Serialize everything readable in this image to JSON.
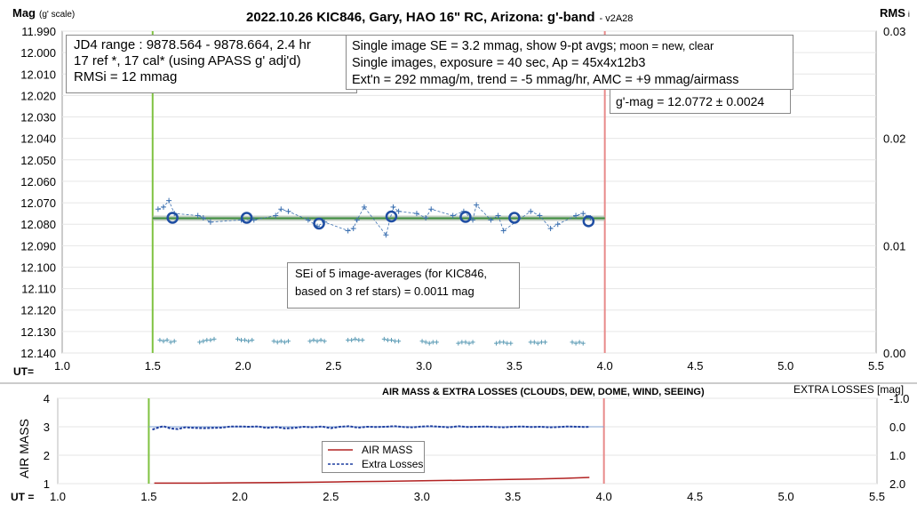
{
  "title": "2022.10.26 KIC846, Gary, HAO 16\" RC, Arizona: g'-band",
  "title_version": "- v2A28",
  "top_chart": {
    "ylabel": "Mag",
    "ylabel_unit": "(g' scale)",
    "y2label": "RMS",
    "y2label_sub": "i",
    "ut_label": "UT="
  },
  "info_boxes": {
    "jd_line1": "JD4 range : 9878.564 - 9878.664,  2.4 hr",
    "jd_line2": "17 ref *, 17 cal* (using APASS g' adj'd)",
    "jd_line3": "RMSi = 12 mmag",
    "se_line1a": "Single image SE = 3.2 mmag, show  9-pt avgs;",
    "se_line1b": " moon = new, clear",
    "se_line2": "Single images, exposure = 40 sec, Ap = 45x4x12b3",
    "se_line3": "Ext'n = 292 mmag/m, trend = -5 mmag/hr, AMC = +9 mmag/airmass",
    "gmag": "g'-mag = 12.0772 ± 0.0024",
    "sei_line1": "SEi of 5 image-averages (for KIC846,",
    "sei_line2": "based on 3 ref stars) = 0.0011 mag"
  },
  "bottom_chart": {
    "title": "AIR MASS & EXTRA LOSSES (CLOUDS, DEW, DOME, WIND, SEEING)",
    "ylabel": "AIR MASS",
    "y2label": "EXTRA LOSSES [mag]",
    "ut_label": "UT =",
    "legend_airmass": "AIR MASS",
    "legend_losses": "Extra Losses"
  },
  "colors": {
    "start_line": "#7fc241",
    "end_line": "#e88a8a",
    "trend_line": "#8fbf8f",
    "mag_points": "#3a6fb0",
    "avg_circles": "#1f4ea3",
    "rms_points": "#5b9bb5",
    "airmass": "#b22222",
    "losses": "#1f3fa0"
  },
  "chart_data": [
    {
      "type": "scatter",
      "title": "2022.10.26 KIC846, Gary, HAO 16\" RC, Arizona: g'-band",
      "ylabel": "Mag (g' scale)",
      "y2label": "RMS i",
      "xlabel": "UT=",
      "xlim": [
        1.0,
        5.5
      ],
      "xticks": [
        1.0,
        1.5,
        2.0,
        2.5,
        3.0,
        3.5,
        4.0,
        4.5,
        5.0,
        5.5
      ],
      "ylim": [
        12.14,
        11.99
      ],
      "yticks": [
        11.99,
        12.0,
        12.01,
        12.02,
        12.03,
        12.04,
        12.05,
        12.06,
        12.07,
        12.08,
        12.09,
        12.1,
        12.11,
        12.12,
        12.13,
        12.14
      ],
      "y2lim": [
        0.0,
        0.03
      ],
      "y2ticks": [
        0.0,
        0.01,
        0.02,
        0.03
      ],
      "vlines": [
        1.5,
        4.0
      ],
      "trend_line": {
        "x": [
          1.5,
          4.0
        ],
        "y": [
          12.0772,
          12.0772
        ]
      },
      "series": [
        {
          "kind": "single_images",
          "x": [
            1.53,
            1.56,
            1.59,
            1.62,
            1.75,
            1.78,
            1.82,
            1.99,
            2.06,
            2.18,
            2.21,
            2.25,
            2.36,
            2.41,
            2.45,
            2.58,
            2.61,
            2.63,
            2.67,
            2.79,
            2.83,
            2.86,
            2.96,
            3.01,
            3.04,
            3.16,
            3.22,
            3.27,
            3.29,
            3.37,
            3.41,
            3.44,
            3.59,
            3.64,
            3.7,
            3.74,
            3.84,
            3.88,
            3.92
          ],
          "y": [
            12.073,
            12.072,
            12.069,
            12.075,
            12.076,
            12.077,
            12.079,
            12.078,
            12.078,
            12.076,
            12.073,
            12.074,
            12.078,
            12.081,
            12.079,
            12.083,
            12.082,
            12.078,
            12.072,
            12.085,
            12.072,
            12.074,
            12.075,
            12.077,
            12.073,
            12.076,
            12.074,
            12.078,
            12.071,
            12.078,
            12.076,
            12.083,
            12.074,
            12.076,
            12.082,
            12.08,
            12.076,
            12.075,
            12.077
          ]
        },
        {
          "kind": "9pt_averages",
          "x": [
            1.61,
            2.02,
            2.42,
            2.82,
            3.23,
            3.5,
            3.91
          ],
          "y": [
            12.077,
            12.077,
            12.0797,
            12.0764,
            12.0766,
            12.077,
            12.0786
          ]
        },
        {
          "kind": "rms_i",
          "axis": "y2",
          "x": [
            1.54,
            1.56,
            1.58,
            1.6,
            1.62,
            1.76,
            1.78,
            1.8,
            1.82,
            1.84,
            1.97,
            1.99,
            2.01,
            2.03,
            2.05,
            2.17,
            2.19,
            2.21,
            2.23,
            2.25,
            2.37,
            2.39,
            2.41,
            2.43,
            2.45,
            2.58,
            2.6,
            2.62,
            2.64,
            2.66,
            2.78,
            2.8,
            2.82,
            2.84,
            2.86,
            2.99,
            3.01,
            3.03,
            3.05,
            3.07,
            3.19,
            3.21,
            3.23,
            3.25,
            3.27,
            3.4,
            3.42,
            3.44,
            3.46,
            3.48,
            3.59,
            3.61,
            3.63,
            3.65,
            3.67,
            3.82,
            3.84,
            3.86,
            3.88
          ],
          "y": [
            0.0012,
            0.0011,
            0.0012,
            0.001,
            0.0011,
            0.001,
            0.0011,
            0.0012,
            0.0012,
            0.0013,
            0.0013,
            0.0012,
            0.0012,
            0.0011,
            0.0012,
            0.0011,
            0.001,
            0.0011,
            0.001,
            0.0011,
            0.0011,
            0.0012,
            0.0011,
            0.0012,
            0.0011,
            0.0012,
            0.0012,
            0.0013,
            0.0012,
            0.0012,
            0.0013,
            0.0012,
            0.0012,
            0.0011,
            0.0011,
            0.0011,
            0.001,
            0.0009,
            0.001,
            0.001,
            0.0009,
            0.001,
            0.001,
            0.0009,
            0.001,
            0.0009,
            0.001,
            0.001,
            0.0009,
            0.0009,
            0.001,
            0.001,
            0.0009,
            0.001,
            0.001,
            0.001,
            0.0009,
            0.001,
            0.0009
          ]
        }
      ]
    },
    {
      "type": "line",
      "title": "AIR MASS & EXTRA LOSSES (CLOUDS, DEW, DOME, WIND, SEEING)",
      "ylabel": "AIR MASS",
      "y2label": "EXTRA LOSSES [mag]",
      "xlabel": "UT =",
      "xlim": [
        1.0,
        5.5
      ],
      "xticks": [
        1.0,
        1.5,
        2.0,
        2.5,
        3.0,
        3.5,
        4.0,
        4.5,
        5.0,
        5.5
      ],
      "ylim": [
        1,
        4
      ],
      "yticks": [
        1,
        2,
        3,
        4
      ],
      "y2lim": [
        2.0,
        -1.0
      ],
      "y2ticks": [
        -1.0,
        0.0,
        1.0,
        2.0
      ],
      "vlines": [
        1.5,
        4.0
      ],
      "legend": "center",
      "series": [
        {
          "name": "AIR MASS",
          "axis": "y",
          "x": [
            1.53,
            1.8,
            2.0,
            2.2,
            2.4,
            2.6,
            2.8,
            3.0,
            3.2,
            3.4,
            3.6,
            3.8,
            3.92
          ],
          "y": [
            1.02,
            1.02,
            1.03,
            1.04,
            1.05,
            1.07,
            1.08,
            1.1,
            1.12,
            1.14,
            1.16,
            1.19,
            1.22
          ]
        },
        {
          "name": "Extra Losses",
          "axis": "y2",
          "x": [
            1.52,
            1.55,
            1.58,
            1.62,
            1.66,
            1.7,
            1.75,
            1.8,
            1.85,
            1.9,
            1.95,
            2.0,
            2.05,
            2.1,
            2.15,
            2.2,
            2.25,
            2.3,
            2.35,
            2.4,
            2.45,
            2.5,
            2.55,
            2.6,
            2.65,
            2.7,
            2.75,
            2.8,
            2.85,
            2.9,
            2.95,
            3.0,
            3.05,
            3.1,
            3.15,
            3.2,
            3.25,
            3.3,
            3.35,
            3.4,
            3.45,
            3.5,
            3.55,
            3.6,
            3.65,
            3.7,
            3.75,
            3.8,
            3.85,
            3.9,
            3.92
          ],
          "y": [
            0.1,
            0.03,
            -0.02,
            0.06,
            0.08,
            0.02,
            0.04,
            0.05,
            0.04,
            0.03,
            -0.01,
            -0.01,
            0.0,
            -0.01,
            0.04,
            0.01,
            0.06,
            0.04,
            0.0,
            0.02,
            -0.01,
            0.05,
            0.0,
            -0.02,
            0.03,
            0.0,
            0.01,
            0.0,
            -0.02,
            0.01,
            0.02,
            -0.01,
            -0.02,
            0.0,
            0.02,
            -0.02,
            0.01,
            0.0,
            -0.01,
            0.01,
            0.02,
            0.0,
            -0.01,
            0.01,
            0.0,
            0.02,
            0.01,
            -0.01,
            0.0,
            0.01,
            0.0
          ]
        }
      ]
    }
  ]
}
